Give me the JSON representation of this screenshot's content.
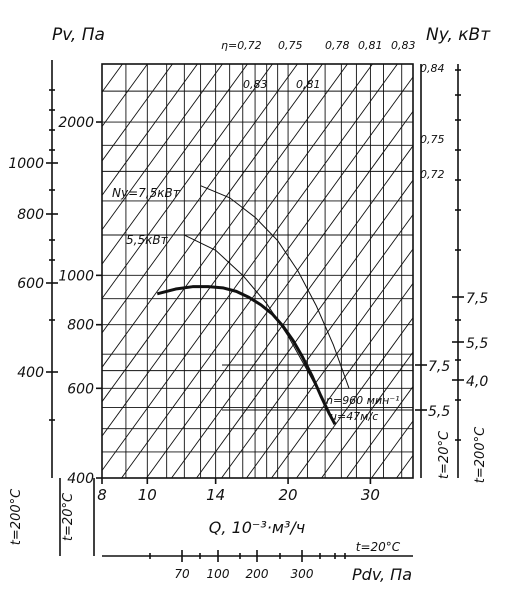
{
  "chart_data": {
    "type": "line",
    "title": "",
    "xlabel": "Q, 10⁻³·м³/ч",
    "ylabel_left": "Pv, Па",
    "ylabel_right": "Ny, кВт",
    "bottom_axis_label": "Pdv, Па",
    "bottom_axis_temp": "t=20°C",
    "left_axis_temps": [
      "t=200°C",
      "t=20°C"
    ],
    "right_axis_temps": [
      "t=20°C",
      "t=200°C"
    ],
    "x_scale": "log",
    "y_scale": "log",
    "xlim": [
      8,
      37
    ],
    "ylim": [
      400,
      2600
    ],
    "x_ticks": [
      "8",
      "10",
      "14",
      "20",
      "30"
    ],
    "y_ticks": [
      "400",
      "600",
      "800",
      "1000",
      "2000"
    ],
    "left_outer_ticks": [
      "400",
      "600",
      "800",
      "1000"
    ],
    "pdv_ticks": [
      "70",
      "100",
      "200",
      "300"
    ],
    "ny_20_ticks": [
      "7,5",
      "5,5"
    ],
    "ny_200_ticks": [
      "7,5",
      "5,5",
      "4,0"
    ],
    "efficiency_labels": [
      "η=0,72",
      "0,75",
      "0,78",
      "0,81",
      "0,83",
      "0,84",
      "0,83",
      "0,81",
      "0,75",
      "0,72"
    ],
    "power_labels": [
      "Ny=7,5кВт",
      "5,5кВт"
    ],
    "speed_label": "n=960 мин⁻¹",
    "velocity_label": "u=47м/с",
    "series": [
      {
        "name": "n=960 мин⁻¹",
        "x": [
          10.5,
          11.5,
          12.5,
          13.5,
          14.5,
          15.5,
          16.5,
          17.5,
          18.5,
          19.5,
          20.5,
          21.5,
          22.5,
          23.5,
          24.5,
          25.2
        ],
        "y": [
          920,
          940,
          950,
          950,
          945,
          930,
          905,
          875,
          840,
          795,
          745,
          690,
          635,
          580,
          535,
          510
        ]
      }
    ],
    "power_curves": [
      {
        "name": "Ny=7,5кВт",
        "x": [
          13,
          15,
          17,
          19,
          21,
          23,
          25,
          27
        ],
        "y": [
          1500,
          1420,
          1300,
          1170,
          1020,
          870,
          730,
          600
        ]
      },
      {
        "name": "5,5кВт",
        "x": [
          12,
          14,
          16,
          18,
          20,
          22,
          24
        ],
        "y": [
          1200,
          1120,
          1000,
          880,
          760,
          650,
          560
        ]
      }
    ]
  }
}
